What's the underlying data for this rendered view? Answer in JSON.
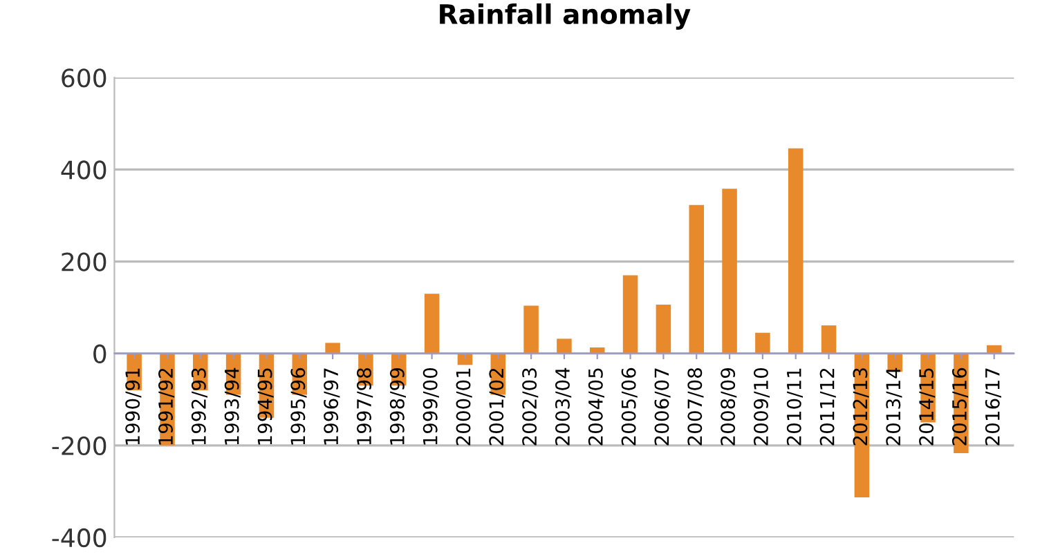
{
  "chart_data": {
    "type": "bar",
    "title": "Rainfall anomaly",
    "categories": [
      "1990/91",
      "1991/92",
      "1992/93",
      "1993/94",
      "1994/95",
      "1995/96",
      "1996/97",
      "1997/98",
      "1998/99",
      "1999/00",
      "2000/01",
      "2001/02",
      "2002/03",
      "2003/04",
      "2004/05",
      "2005/06",
      "2006/07",
      "2007/08",
      "2008/09",
      "2009/10",
      "2010/11",
      "2011/12",
      "2012/13",
      "2013/14",
      "2014/15",
      "2015/16",
      "2016/17"
    ],
    "values": [
      -80,
      -200,
      -80,
      -90,
      -140,
      -90,
      23,
      -70,
      -70,
      130,
      -25,
      -90,
      104,
      32,
      13,
      170,
      106,
      323,
      358,
      45,
      446,
      61,
      -313,
      -40,
      -150,
      -217,
      18
    ],
    "color": "#e8892b",
    "ylim": [
      -400,
      600
    ],
    "yticks": [
      -400,
      -200,
      0,
      200,
      400,
      600
    ],
    "grid": "y"
  }
}
